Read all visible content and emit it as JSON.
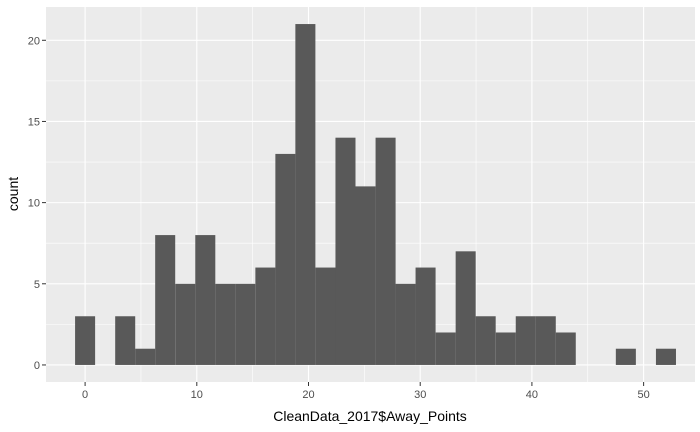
{
  "chart_data": {
    "type": "bar",
    "subtype": "histogram",
    "xlabel": "CleanData_2017$Away_Points",
    "ylabel": "count",
    "bin_width": 1.7931,
    "bin_start": -0.8966,
    "bins": [
      {
        "x_center": 0.0,
        "count": 3
      },
      {
        "x_center": 1.79,
        "count": 0
      },
      {
        "x_center": 3.59,
        "count": 3
      },
      {
        "x_center": 5.38,
        "count": 1
      },
      {
        "x_center": 7.17,
        "count": 8
      },
      {
        "x_center": 8.97,
        "count": 5
      },
      {
        "x_center": 10.76,
        "count": 8
      },
      {
        "x_center": 12.55,
        "count": 5
      },
      {
        "x_center": 14.34,
        "count": 5
      },
      {
        "x_center": 16.14,
        "count": 6
      },
      {
        "x_center": 17.93,
        "count": 13
      },
      {
        "x_center": 19.72,
        "count": 21
      },
      {
        "x_center": 21.52,
        "count": 6
      },
      {
        "x_center": 23.31,
        "count": 14
      },
      {
        "x_center": 25.1,
        "count": 11
      },
      {
        "x_center": 26.9,
        "count": 14
      },
      {
        "x_center": 28.69,
        "count": 5
      },
      {
        "x_center": 30.48,
        "count": 6
      },
      {
        "x_center": 32.28,
        "count": 2
      },
      {
        "x_center": 34.07,
        "count": 7
      },
      {
        "x_center": 35.86,
        "count": 3
      },
      {
        "x_center": 37.66,
        "count": 2
      },
      {
        "x_center": 39.45,
        "count": 3
      },
      {
        "x_center": 41.24,
        "count": 3
      },
      {
        "x_center": 43.03,
        "count": 2
      },
      {
        "x_center": 44.83,
        "count": 0
      },
      {
        "x_center": 46.62,
        "count": 0
      },
      {
        "x_center": 48.41,
        "count": 1
      },
      {
        "x_center": 50.21,
        "count": 0
      },
      {
        "x_center": 52.0,
        "count": 1
      }
    ],
    "xlim": [
      -3.5,
      54.6
    ],
    "ylim": [
      -1.05,
      22.05
    ],
    "x_ticks": [
      0,
      10,
      20,
      30,
      40,
      50
    ],
    "x_tick_labels": [
      "0",
      "10",
      "20",
      "30",
      "40",
      "50"
    ],
    "y_ticks": [
      0,
      5,
      10,
      15,
      20
    ],
    "y_tick_labels": [
      "0",
      "5",
      "10",
      "15",
      "20"
    ],
    "grid": true,
    "colors": {
      "panel_background": "#ebebeb",
      "grid_major": "#ffffff",
      "bar_fill": "#595959",
      "tick_mark": "#333333"
    }
  }
}
